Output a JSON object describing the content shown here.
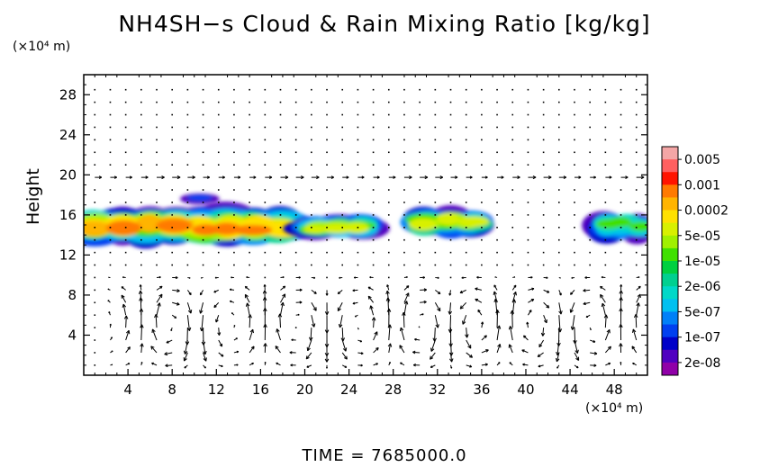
{
  "chart_data": {
    "type": "heatmap",
    "title": "NH4SH−s Cloud & Rain Mixing Ratio [kg/kg]",
    "ylabel": "Height",
    "y_unit": "(×10⁴ m)",
    "x_unit": "(×10⁴ m)",
    "footer": "TIME  =  7685000.0",
    "xlim": [
      0,
      51
    ],
    "ylim": [
      0,
      30
    ],
    "x_ticks": [
      4,
      8,
      12,
      16,
      20,
      24,
      28,
      32,
      36,
      40,
      44,
      48
    ],
    "y_ticks": [
      4,
      8,
      12,
      16,
      20,
      24,
      28
    ],
    "colorbar": {
      "labels": [
        "0.005",
        "0.001",
        "0.0002",
        "5e-05",
        "1e-05",
        "2e-06",
        "5e-07",
        "1e-07",
        "2e-08"
      ],
      "colors": [
        "#f4a6a6",
        "#ff6060",
        "#ff1400",
        "#ff7a00",
        "#ffb400",
        "#ffe000",
        "#d8f000",
        "#a0f000",
        "#40e000",
        "#00d040",
        "#00d090",
        "#00d8c8",
        "#00c0f0",
        "#0080f8",
        "#0040f0",
        "#0000c8",
        "#5000c0",
        "#9000a8"
      ]
    },
    "cloud_layers": [
      {
        "x_start": 0,
        "x_end": 19,
        "z_bottom": 13.3,
        "z_top": 16.5,
        "peak": "0.0002"
      },
      {
        "x_start": 20,
        "x_end": 26,
        "z_bottom": 13.8,
        "z_top": 15.8,
        "peak": "5e-05"
      },
      {
        "x_start": 30,
        "x_end": 36,
        "z_bottom": 14.0,
        "z_top": 16.5,
        "peak": "5e-05"
      },
      {
        "x_start": 46.5,
        "x_end": 51,
        "z_bottom": 13.6,
        "z_top": 16.2,
        "peak": "1e-05"
      }
    ],
    "vector_field": "wind arrows, strongest below z = 10, weak above",
    "grid": false
  }
}
